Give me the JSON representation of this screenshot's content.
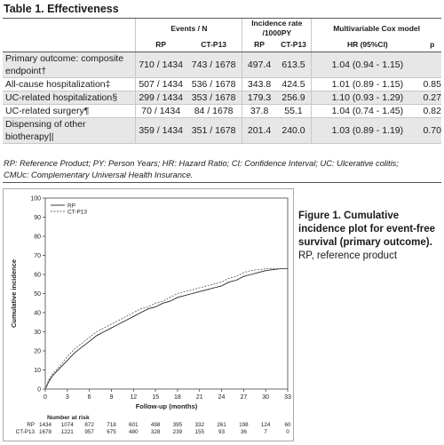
{
  "table": {
    "title": "Table 1. Effectiveness",
    "header": {
      "events": "Events / N",
      "rate_line1": "Incidence rate",
      "rate_line2": "/1000PY",
      "cox": "Multivariable Cox model",
      "rp": "RP",
      "ctp13": "CT-P13",
      "hr": "HR (95%CI)",
      "p": "p"
    },
    "rows": [
      {
        "label1": "Primary outcome: composite",
        "label2": "endpoint†",
        "ev_rp": "710 / 1434",
        "ev_ct": "743 / 1678",
        "ir_rp": "497.4",
        "ir_ct": "613.5",
        "hr": "1.04 (0.94 - 1.15)",
        "p": ""
      },
      {
        "label1": "All-cause hospitalization‡",
        "label2": "",
        "ev_rp": "507 / 1434",
        "ev_ct": "536 / 1678",
        "ir_rp": "343.8",
        "ir_ct": "424.5",
        "hr": "1.01 (0.89 - 1.15)",
        "p": "0.85"
      },
      {
        "label1": "UC-related hospitalization§",
        "label2": "",
        "ev_rp": "299 / 1434",
        "ev_ct": "353 / 1678",
        "ir_rp": "179.3",
        "ir_ct": "256.9",
        "hr": "1.10 (0.93 - 1.29)",
        "p": "0.27"
      },
      {
        "label1": "UC-related surgery¶",
        "label2": "",
        "ev_rp": "70 / 1434",
        "ev_ct": "84 / 1678",
        "ir_rp": "37.8",
        "ir_ct": "55.1",
        "hr": "1.04 (0.74 - 1.45)",
        "p": "0.82"
      },
      {
        "label1": "Dispensing of other",
        "label2": "biotherapy||",
        "ev_rp": "359 / 1434",
        "ev_ct": "351 / 1678",
        "ir_rp": "201.4",
        "ir_ct": "240.0",
        "hr": "1.03 (0.89 - 1.19)",
        "p": "0.70"
      }
    ],
    "footnote_line1": "RP: Reference Product; PY: Person Years; HR: Hazard Ratio; CI: Confidence Interval; UC: Ulcerative colitis;",
    "footnote_line2": "CMUc: Complementary Universal Health Insurance."
  },
  "figure": {
    "caption_bold": "Figure 1. Cumulative incidence plot for event-free survival (primary outcome).",
    "caption_rest": " RP, reference product"
  },
  "chart_data": {
    "type": "line",
    "xlabel": "Follow-up (months)",
    "ylabel": "Cumulative incidence",
    "xlim": [
      0,
      33
    ],
    "ylim": [
      0,
      100
    ],
    "x_ticks": [
      0,
      3,
      6,
      9,
      12,
      15,
      18,
      21,
      24,
      27,
      30,
      33
    ],
    "y_ticks": [
      0,
      10,
      20,
      30,
      40,
      50,
      60,
      70,
      80,
      90,
      100
    ],
    "legend_position": "top-left",
    "series": [
      {
        "name": "RP",
        "style": "solid",
        "x": [
          0,
          0.5,
          1,
          2,
          3,
          4,
          5,
          6,
          7,
          8,
          9,
          10,
          11,
          12,
          13,
          14,
          15,
          16,
          17,
          18,
          19,
          20,
          21,
          22,
          23,
          24,
          25,
          26,
          27,
          28,
          29,
          30,
          31,
          32,
          33
        ],
        "values": [
          0,
          4,
          7,
          11,
          15,
          19,
          22,
          25,
          28,
          30,
          32,
          34,
          36,
          38,
          40,
          42,
          43,
          45,
          46,
          48,
          49,
          50,
          51,
          52,
          53,
          54,
          56,
          57,
          59,
          60,
          61,
          62,
          62.5,
          63,
          63
        ]
      },
      {
        "name": "CT-P13",
        "style": "dashed",
        "x": [
          0,
          0.5,
          1,
          2,
          3,
          4,
          5,
          6,
          7,
          8,
          9,
          10,
          11,
          12,
          13,
          14,
          15,
          16,
          17,
          18,
          19,
          20,
          21,
          22,
          23,
          24,
          25,
          26,
          27,
          28,
          29,
          30,
          31,
          32,
          33
        ],
        "values": [
          0,
          5,
          8,
          12,
          17,
          21,
          24,
          27,
          30,
          32,
          34,
          36,
          38,
          40,
          42,
          43,
          45,
          46,
          48,
          50,
          51,
          52,
          53,
          54,
          55,
          56,
          58,
          59,
          61,
          62,
          62.5,
          63,
          63,
          63,
          63
        ]
      }
    ],
    "risk_table": {
      "title": "Number at risk",
      "rows": [
        {
          "label": "RP",
          "values": [
            "1434",
            "1074",
            "872",
            "718",
            "601",
            "498",
            "395",
            "332",
            "261",
            "198",
            "124",
            "60"
          ]
        },
        {
          "label": "CT-P13",
          "values": [
            "1678",
            "1221",
            "957",
            "675",
            "480",
            "328",
            "239",
            "155",
            "93",
            "36",
            "7",
            "0"
          ]
        }
      ]
    }
  }
}
